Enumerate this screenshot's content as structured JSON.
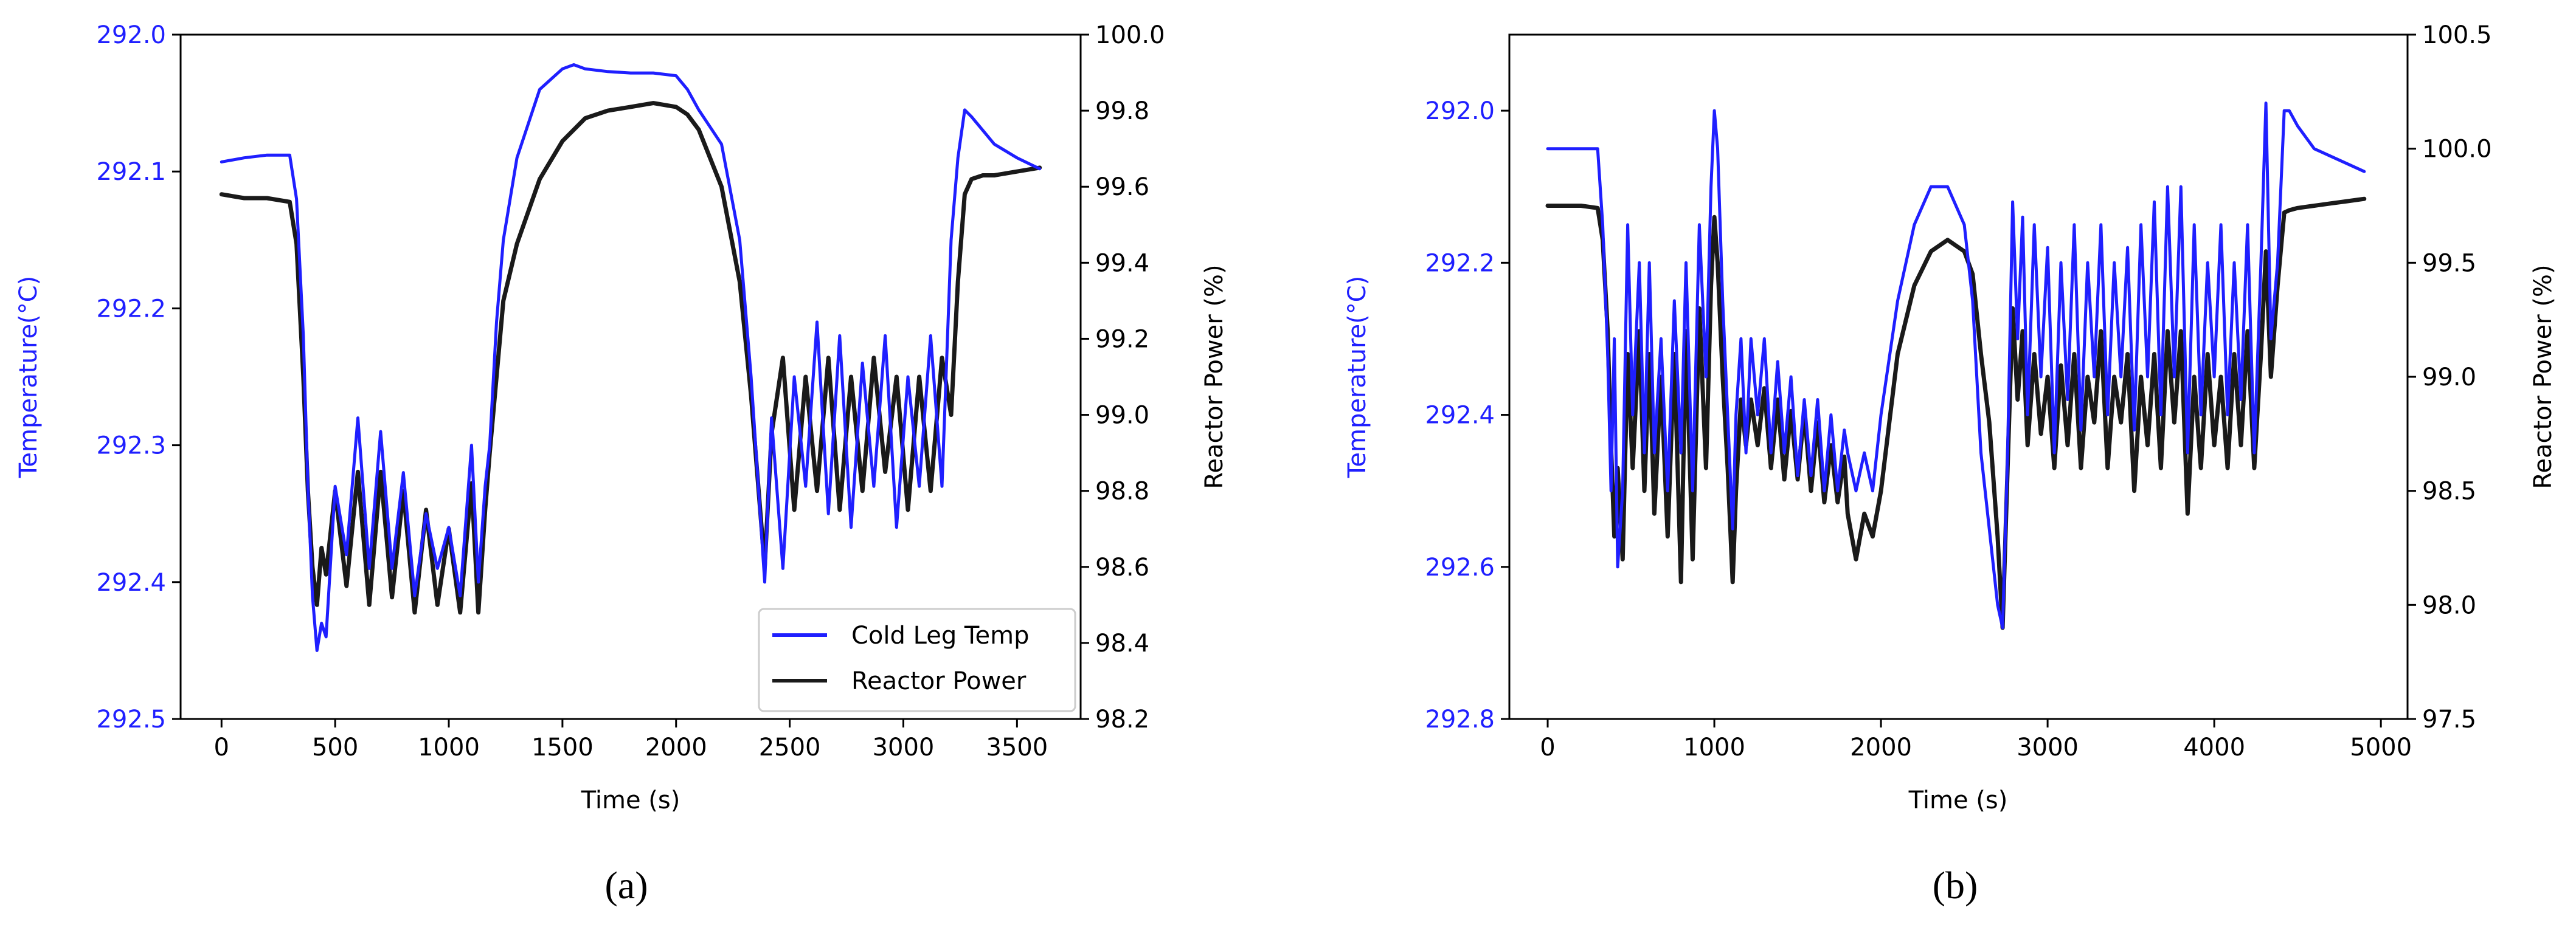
{
  "chart_data": [
    {
      "panel_label": "(a)",
      "type": "line",
      "xlabel": "Time (s)",
      "y_left_label": "Temperature(°C)",
      "y_right_label": "Reactor Power (%)",
      "xlim": [
        -180,
        3780
      ],
      "xticks": [
        0,
        500,
        1000,
        1500,
        2000,
        2500,
        3000,
        3500
      ],
      "y_left_lim": [
        292.5,
        292.0
      ],
      "y_left_inverted": true,
      "y_left_ticks": [
        "292.0",
        "292.1",
        "292.2",
        "292.3",
        "292.4",
        "292.5"
      ],
      "y_left_tick_values": [
        292.0,
        292.1,
        292.2,
        292.3,
        292.4,
        292.5
      ],
      "y_right_lim": [
        98.2,
        100.0
      ],
      "y_right_ticks": [
        "98.2",
        "98.4",
        "98.6",
        "98.8",
        "99.0",
        "99.2",
        "99.4",
        "99.6",
        "99.8",
        "100.0"
      ],
      "y_right_tick_values": [
        98.2,
        98.4,
        98.6,
        98.8,
        99.0,
        99.2,
        99.4,
        99.6,
        99.8,
        100.0
      ],
      "legend": {
        "placement": "lower-right",
        "entries": [
          "Cold Leg Temp",
          "Reactor Power"
        ]
      },
      "series": [
        {
          "name": "Cold Leg Temp",
          "axis": "left",
          "color": "#1f1fff",
          "x": [
            0,
            100,
            200,
            300,
            330,
            360,
            380,
            400,
            420,
            440,
            460,
            500,
            550,
            600,
            650,
            700,
            750,
            800,
            850,
            900,
            950,
            1000,
            1050,
            1100,
            1130,
            1160,
            1180,
            1210,
            1240,
            1300,
            1400,
            1500,
            1550,
            1600,
            1700,
            1800,
            1900,
            2000,
            2050,
            2100,
            2200,
            2280,
            2330,
            2370,
            2390,
            2420,
            2470,
            2520,
            2570,
            2620,
            2670,
            2720,
            2770,
            2820,
            2870,
            2920,
            2970,
            3020,
            3070,
            3120,
            3170,
            3210,
            3240,
            3270,
            3300,
            3350,
            3400,
            3500,
            3600
          ],
          "values": [
            292.093,
            292.09,
            292.088,
            292.088,
            292.12,
            292.22,
            292.33,
            292.41,
            292.45,
            292.43,
            292.44,
            292.33,
            292.38,
            292.28,
            292.39,
            292.29,
            292.39,
            292.32,
            292.41,
            292.35,
            292.39,
            292.36,
            292.41,
            292.3,
            292.4,
            292.33,
            292.3,
            292.21,
            292.15,
            292.09,
            292.04,
            292.025,
            292.022,
            292.025,
            292.027,
            292.028,
            292.028,
            292.03,
            292.04,
            292.055,
            292.08,
            292.15,
            292.25,
            292.35,
            292.4,
            292.28,
            292.39,
            292.25,
            292.33,
            292.21,
            292.35,
            292.22,
            292.36,
            292.24,
            292.33,
            292.22,
            292.36,
            292.25,
            292.33,
            292.22,
            292.33,
            292.15,
            292.09,
            292.055,
            292.06,
            292.07,
            292.08,
            292.09,
            292.098
          ]
        },
        {
          "name": "Reactor Power",
          "axis": "right",
          "color": "#1a1a1a",
          "x": [
            0,
            100,
            200,
            300,
            330,
            360,
            380,
            400,
            420,
            440,
            460,
            500,
            550,
            600,
            650,
            700,
            750,
            800,
            850,
            900,
            950,
            1000,
            1050,
            1100,
            1130,
            1160,
            1180,
            1210,
            1240,
            1300,
            1400,
            1500,
            1600,
            1700,
            1800,
            1900,
            2000,
            2050,
            2100,
            2200,
            2280,
            2330,
            2370,
            2390,
            2420,
            2470,
            2520,
            2570,
            2620,
            2670,
            2720,
            2770,
            2820,
            2870,
            2920,
            2970,
            3020,
            3070,
            3120,
            3170,
            3210,
            3240,
            3270,
            3300,
            3350,
            3400,
            3500,
            3600
          ],
          "values": [
            99.58,
            99.57,
            99.57,
            99.56,
            99.45,
            99.1,
            98.8,
            98.6,
            98.5,
            98.65,
            98.58,
            98.8,
            98.55,
            98.85,
            98.5,
            98.85,
            98.52,
            98.8,
            98.48,
            98.75,
            98.5,
            98.7,
            98.48,
            98.82,
            98.48,
            98.75,
            98.9,
            99.1,
            99.3,
            99.45,
            99.62,
            99.72,
            99.78,
            99.8,
            99.81,
            99.82,
            99.81,
            99.79,
            99.75,
            99.6,
            99.35,
            99.05,
            98.75,
            98.6,
            98.95,
            99.15,
            98.75,
            99.1,
            98.8,
            99.15,
            98.75,
            99.1,
            98.8,
            99.15,
            98.85,
            99.1,
            98.75,
            99.1,
            98.8,
            99.15,
            99.0,
            99.35,
            99.58,
            99.62,
            99.63,
            99.63,
            99.64,
            99.65
          ]
        }
      ]
    },
    {
      "panel_label": "(b)",
      "type": "line",
      "xlabel": "Time (s)",
      "y_left_label": "Temperature(°C)",
      "y_right_label": "Reactor Power (%)",
      "xlim": [
        -230,
        5160
      ],
      "xticks": [
        0,
        1000,
        2000,
        3000,
        4000,
        5000
      ],
      "y_left_lim": [
        292.8,
        291.9
      ],
      "y_left_inverted": true,
      "y_left_ticks": [
        "292.0",
        "292.2",
        "292.4",
        "292.6",
        "292.8"
      ],
      "y_left_tick_values": [
        292.0,
        292.2,
        292.4,
        292.6,
        292.8
      ],
      "y_right_lim": [
        97.5,
        100.5
      ],
      "y_right_ticks": [
        "97.5",
        "98.0",
        "98.5",
        "99.0",
        "99.5",
        "100.0",
        "100.5"
      ],
      "y_right_tick_values": [
        97.5,
        98.0,
        98.5,
        99.0,
        99.5,
        100.0,
        100.5
      ],
      "legend": null,
      "series": [
        {
          "name": "Cold Leg Temp",
          "axis": "left",
          "color": "#1f1fff",
          "x": [
            0,
            100,
            200,
            300,
            330,
            360,
            380,
            400,
            420,
            450,
            480,
            510,
            550,
            580,
            610,
            640,
            680,
            720,
            760,
            800,
            830,
            870,
            910,
            950,
            980,
            1000,
            1020,
            1050,
            1080,
            1110,
            1130,
            1160,
            1190,
            1220,
            1260,
            1300,
            1340,
            1380,
            1420,
            1460,
            1500,
            1540,
            1580,
            1620,
            1660,
            1700,
            1740,
            1780,
            1800,
            1850,
            1900,
            1950,
            2000,
            2100,
            2200,
            2300,
            2400,
            2500,
            2550,
            2600,
            2650,
            2700,
            2730,
            2760,
            2790,
            2820,
            2850,
            2880,
            2920,
            2960,
            3000,
            3040,
            3080,
            3120,
            3160,
            3200,
            3240,
            3280,
            3320,
            3360,
            3400,
            3440,
            3480,
            3520,
            3560,
            3600,
            3640,
            3680,
            3720,
            3760,
            3800,
            3840,
            3880,
            3920,
            3960,
            4000,
            4040,
            4080,
            4120,
            4160,
            4200,
            4240,
            4280,
            4310,
            4340,
            4380,
            4420,
            4450,
            4500,
            4600,
            4700,
            4800,
            4900
          ],
          "values": [
            292.05,
            292.05,
            292.05,
            292.05,
            292.15,
            292.32,
            292.5,
            292.3,
            292.6,
            292.5,
            292.15,
            292.4,
            292.2,
            292.45,
            292.2,
            292.45,
            292.3,
            292.5,
            292.25,
            292.45,
            292.2,
            292.5,
            292.15,
            292.35,
            292.1,
            292.0,
            292.05,
            292.25,
            292.4,
            292.55,
            292.4,
            292.3,
            292.45,
            292.3,
            292.4,
            292.3,
            292.45,
            292.33,
            292.45,
            292.35,
            292.48,
            292.38,
            292.48,
            292.38,
            292.5,
            292.4,
            292.5,
            292.42,
            292.45,
            292.5,
            292.45,
            292.5,
            292.4,
            292.25,
            292.15,
            292.1,
            292.1,
            292.15,
            292.25,
            292.45,
            292.55,
            292.65,
            292.68,
            292.45,
            292.12,
            292.3,
            292.14,
            292.4,
            292.15,
            292.35,
            292.18,
            292.45,
            292.2,
            292.38,
            292.15,
            292.42,
            292.2,
            292.35,
            292.15,
            292.4,
            292.2,
            292.35,
            292.18,
            292.42,
            292.15,
            292.35,
            292.12,
            292.4,
            292.1,
            292.35,
            292.1,
            292.45,
            292.15,
            292.4,
            292.2,
            292.35,
            292.15,
            292.4,
            292.2,
            292.38,
            292.15,
            292.45,
            292.2,
            291.99,
            292.3,
            292.2,
            292.0,
            292.0,
            292.02,
            292.05,
            292.06,
            292.07,
            292.08
          ]
        },
        {
          "name": "Reactor Power",
          "axis": "right",
          "color": "#1a1a1a",
          "x": [
            0,
            100,
            200,
            300,
            330,
            360,
            380,
            400,
            420,
            450,
            480,
            510,
            550,
            580,
            610,
            640,
            680,
            720,
            760,
            800,
            830,
            870,
            910,
            950,
            980,
            1000,
            1020,
            1050,
            1080,
            1110,
            1130,
            1160,
            1190,
            1220,
            1260,
            1300,
            1340,
            1380,
            1420,
            1460,
            1500,
            1540,
            1580,
            1620,
            1660,
            1700,
            1740,
            1780,
            1800,
            1850,
            1900,
            1950,
            2000,
            2100,
            2200,
            2300,
            2400,
            2500,
            2550,
            2600,
            2650,
            2700,
            2730,
            2760,
            2790,
            2820,
            2850,
            2880,
            2920,
            2960,
            3000,
            3040,
            3080,
            3120,
            3160,
            3200,
            3240,
            3280,
            3320,
            3360,
            3400,
            3440,
            3480,
            3520,
            3560,
            3600,
            3640,
            3680,
            3720,
            3760,
            3800,
            3840,
            3880,
            3920,
            3960,
            4000,
            4040,
            4080,
            4120,
            4160,
            4200,
            4240,
            4280,
            4310,
            4340,
            4380,
            4420,
            4450,
            4500,
            4600,
            4700,
            4800,
            4900
          ],
          "values": [
            99.75,
            99.75,
            99.75,
            99.74,
            99.6,
            99.2,
            98.7,
            98.3,
            98.6,
            98.2,
            99.1,
            98.6,
            99.2,
            98.5,
            99.1,
            98.4,
            99.0,
            98.3,
            99.1,
            98.1,
            99.2,
            98.2,
            99.3,
            98.6,
            99.4,
            99.7,
            99.5,
            99.0,
            98.6,
            98.1,
            98.5,
            98.9,
            98.7,
            98.9,
            98.7,
            98.95,
            98.6,
            98.9,
            98.55,
            98.85,
            98.55,
            98.85,
            98.5,
            98.8,
            98.45,
            98.7,
            98.45,
            98.65,
            98.4,
            98.2,
            98.4,
            98.3,
            98.5,
            99.1,
            99.4,
            99.55,
            99.6,
            99.55,
            99.45,
            99.1,
            98.8,
            98.3,
            97.9,
            98.6,
            99.3,
            98.9,
            99.2,
            98.7,
            99.1,
            98.75,
            99.0,
            98.6,
            99.05,
            98.7,
            99.1,
            98.6,
            99.0,
            98.8,
            99.2,
            98.6,
            99.0,
            98.8,
            99.1,
            98.5,
            99.0,
            98.7,
            99.1,
            98.6,
            99.2,
            98.8,
            99.2,
            98.4,
            99.0,
            98.6,
            99.1,
            98.7,
            99.0,
            98.6,
            99.1,
            98.7,
            99.2,
            98.6,
            99.1,
            99.55,
            99.0,
            99.4,
            99.72,
            99.73,
            99.74,
            99.75,
            99.76,
            99.77,
            99.78
          ]
        }
      ]
    }
  ]
}
